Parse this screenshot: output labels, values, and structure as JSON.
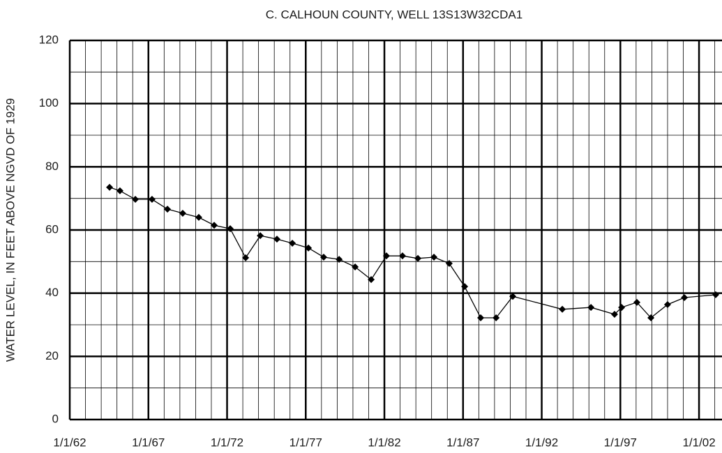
{
  "chart_data": {
    "type": "line",
    "title": "C. CALHOUN COUNTY, WELL 13S13W32CDA1",
    "y_label": "WATER LEVEL,  IN  FEET ABOVE NGVD OF 1929",
    "x": [
      1964.53,
      1965.19,
      1966.17,
      1967.23,
      1968.21,
      1969.18,
      1970.2,
      1971.18,
      1972.2,
      1973.18,
      1974.11,
      1975.17,
      1976.15,
      1977.17,
      1978.14,
      1979.12,
      1980.14,
      1981.16,
      1982.13,
      1983.15,
      1984.13,
      1985.15,
      1986.12,
      1987.1,
      1988.12,
      1989.1,
      1990.16,
      1993.31,
      1995.13,
      1996.63,
      1997.08,
      1998.05,
      1998.94,
      2000.0,
      2001.07,
      2003.06
    ],
    "series": [
      {
        "name": "Water level",
        "color": "#000000",
        "values": [
          73.5,
          72.4,
          69.7,
          69.7,
          66.6,
          65.3,
          64.0,
          61.5,
          60.4,
          51.2,
          58.2,
          57.1,
          55.8,
          54.3,
          51.4,
          50.7,
          48.3,
          44.3,
          51.8,
          51.8,
          51.0,
          51.4,
          49.4,
          42.1,
          32.2,
          32.2,
          39.0,
          34.9,
          35.5,
          33.3,
          35.5,
          37.1,
          32.2,
          36.4,
          38.6,
          39.5
        ]
      }
    ],
    "xlim": [
      1962,
      2003.46
    ],
    "xticks": [
      {
        "value": 1962,
        "label": "1/1/62"
      },
      {
        "value": 1967,
        "label": "1/1/67"
      },
      {
        "value": 1972,
        "label": "1/1/72"
      },
      {
        "value": 1977,
        "label": "1/1/77"
      },
      {
        "value": 1982,
        "label": "1/1/82"
      },
      {
        "value": 1987,
        "label": "1/1/87"
      },
      {
        "value": 1992,
        "label": "1/1/92"
      },
      {
        "value": 1997,
        "label": "1/1/97"
      },
      {
        "value": 2002,
        "label": "1/1/02"
      }
    ],
    "ylim": [
      0,
      120
    ],
    "yticks": [
      0,
      20,
      40,
      60,
      80,
      100,
      120
    ],
    "grid": true
  }
}
